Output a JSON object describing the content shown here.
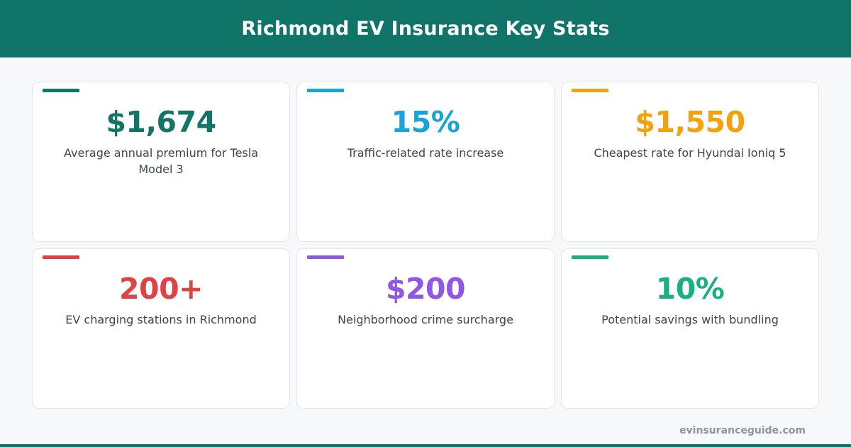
{
  "header": {
    "title": "Richmond EV Insurance Key Stats"
  },
  "stats": [
    {
      "value": "$1,674",
      "label": "Average annual premium for Tesla Model 3",
      "color": "#137468"
    },
    {
      "value": "15%",
      "label": "Traffic-related rate increase",
      "color": "#1aa3d9"
    },
    {
      "value": "$1,550",
      "label": "Cheapest rate for Hyundai Ioniq 5",
      "color": "#f1a20e"
    },
    {
      "value": "200+",
      "label": "EV charging stations in Richmond",
      "color": "#e04145"
    },
    {
      "value": "$200",
      "label": "Neighborhood crime surcharge",
      "color": "#8f57e6"
    },
    {
      "value": "10%",
      "label": "Potential savings with bundling",
      "color": "#17b07f"
    }
  ],
  "footer": {
    "site": "evinsuranceguide.com"
  }
}
